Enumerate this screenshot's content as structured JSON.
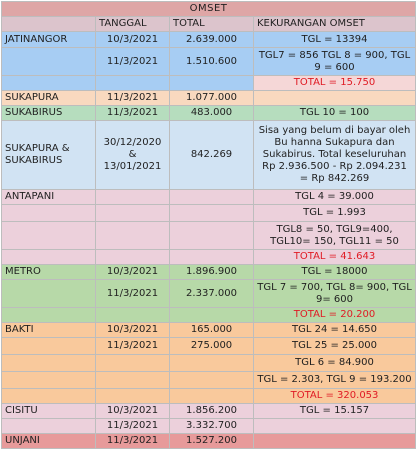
{
  "sheet": {
    "title": "OMSET",
    "headers": [
      "",
      "TANGGAL",
      "TOTAL",
      "KEKURANGAN OMSET"
    ],
    "colors": {
      "title": "#dea6a6",
      "header": "#dcc4cc",
      "jatinangor": "#a7cdf3",
      "jatinangor_total": "#f5d7d7",
      "sukapura": "#f9d9bf",
      "sukabirus": "#b6ddbe",
      "sukapura_sukabirus": "#d1e3f3",
      "antapani": "#ecd0db",
      "metro": "#b7d9a8",
      "bakti": "#f9c99c",
      "cisitu": "#ecd0db",
      "unjani": "#e79a9a",
      "total_red": "#e01b24"
    },
    "rows": [
      {
        "name": "JATINANGOR",
        "date": "10/3/2021",
        "total": "2.639.000",
        "note": "TGL = 13394",
        "bg": "#a7cdf3",
        "h": 16
      },
      {
        "name": "",
        "date": "11/3/2021",
        "total": "1.510.600",
        "note": "TGL7 = 856 TGL 8 = 900, TGL 9 = 600",
        "bg": "#a7cdf3",
        "h": 28
      },
      {
        "name": "",
        "date": "",
        "total": "",
        "note": "TOTAL = 15.750",
        "red": true,
        "bg": "#a7cdf3",
        "noteBg": "#f5d7d7",
        "h": 15
      },
      {
        "name": "SUKAPURA",
        "date": "11/3/2021",
        "total": "1.077.000",
        "note": "",
        "bg": "#f9d9bf",
        "h": 15
      },
      {
        "name": "SUKABIRUS",
        "date": "11/3/2021",
        "total": "483.000",
        "note": "TGL 10 = 100",
        "bg": "#b6ddbe",
        "h": 15
      },
      {
        "name": "SUKAPURA & SUKABIRUS",
        "date": "30/12/2020 & 13/01/2021",
        "total": "842.269",
        "note": "Sisa yang belum di bayar oleh Bu hanna Sukapura dan Sukabirus. Total keseluruhan Rp 2.936.500 - Rp 2.094.231 = Rp 842.269",
        "bg": "#d1e3f3",
        "h": 69,
        "wrapName": true,
        "wrapDate": true
      },
      {
        "name": "ANTAPANI",
        "date": "",
        "total": "",
        "note": "TGL 4 = 39.000",
        "bg": "#ecd0db",
        "h": 15
      },
      {
        "name": "",
        "date": "",
        "total": "",
        "note": "TGL = 1.993",
        "bg": "#ecd0db",
        "h": 17
      },
      {
        "name": "",
        "date": "",
        "total": "",
        "note": "TGL8 = 50, TGL9=400, TGL10= 150, TGL11 = 50",
        "bg": "#ecd0db",
        "h": 28
      },
      {
        "name": "",
        "date": "",
        "total": "",
        "note": "TOTAL = 41.643",
        "red": true,
        "bg": "#ecd0db",
        "h": 15
      },
      {
        "name": "METRO",
        "date": "10/3/2021",
        "total": "1.896.900",
        "note": "TGL = 18000",
        "bg": "#b7d9a8",
        "h": 15
      },
      {
        "name": "",
        "date": "11/3/2021",
        "total": "2.337.000",
        "note": "TGL 7 = 700, TGL 8= 900, TGL 9= 600",
        "bg": "#b7d9a8",
        "h": 28
      },
      {
        "name": "",
        "date": "",
        "total": "",
        "note": "TOTAL = 20.200",
        "red": true,
        "bg": "#b7d9a8",
        "h": 15
      },
      {
        "name": "BAKTI",
        "date": "10/3/2021",
        "total": "165.000",
        "note": "TGL 24 = 14.650",
        "bg": "#f9c99c",
        "h": 15
      },
      {
        "name": "",
        "date": "11/3/2021",
        "total": "275.000",
        "note": "TGL 25 = 25.000",
        "bg": "#f9c99c",
        "h": 17
      },
      {
        "name": "",
        "date": "",
        "total": "",
        "note": "TGL 6 = 84.900",
        "bg": "#f9c99c",
        "h": 17
      },
      {
        "name": "",
        "date": "",
        "total": "",
        "note": "TGL = 2.303, TGL 9 = 193.200",
        "bg": "#f9c99c",
        "h": 17
      },
      {
        "name": "",
        "date": "",
        "total": "",
        "note": "TOTAL = 320.053",
        "red": true,
        "bg": "#f9c99c",
        "h": 15
      },
      {
        "name": "CISITU",
        "date": "10/3/2021",
        "total": "1.856.200",
        "note": "TGL = 15.157",
        "bg": "#ecd0db",
        "h": 15
      },
      {
        "name": "",
        "date": "11/3/2021",
        "total": "3.332.700",
        "note": "",
        "bg": "#ecd0db",
        "h": 15
      },
      {
        "name": "UNJANI",
        "date": "11/3/2021",
        "total": "1.527.200",
        "note": "",
        "bg": "#e79a9a",
        "h": 15
      }
    ]
  }
}
